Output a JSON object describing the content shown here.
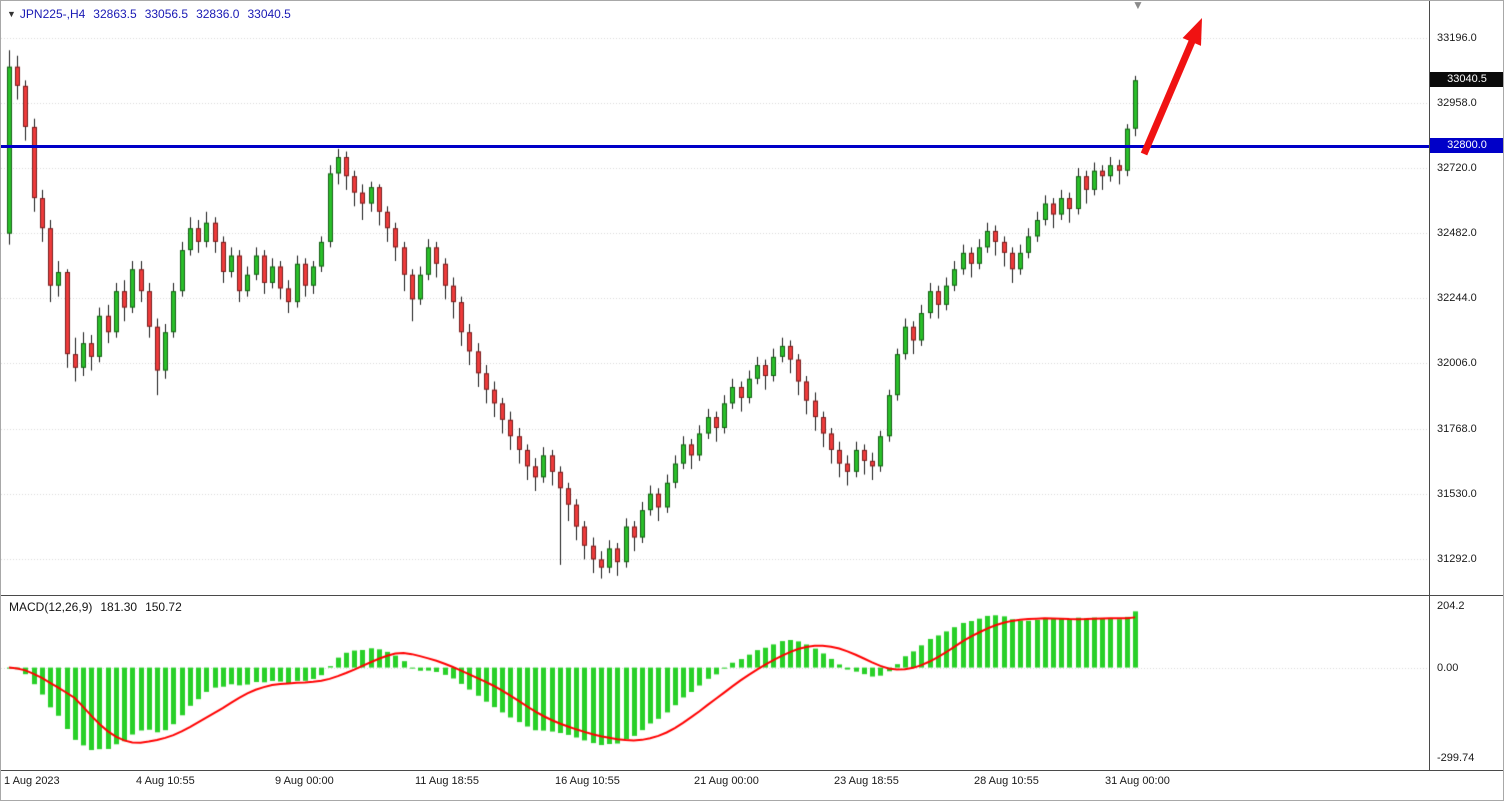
{
  "header": {
    "dropdown_icon": "▼",
    "symbol_timeframe": "JPN225-,H4",
    "open": "32863.5",
    "high": "33056.5",
    "low": "32836.0",
    "close": "33040.5"
  },
  "indicator_label": {
    "name": "MACD(12,26,9)",
    "main_value": "181.30",
    "signal_value": "150.72"
  },
  "price_tags": {
    "current": "33040.5",
    "hline": "32800.0"
  },
  "shift_marker_icon": "▼",
  "colors": {
    "up_candle": "#2abf2a",
    "down_candle": "#ee3b3b",
    "wick": "#1a1a1a",
    "grid": "#d8d8d8",
    "hline": "#0000c8",
    "current_tag_bg": "#0a0a0a",
    "hline_tag_bg": "#0000c8",
    "macd_bar": "#28d028",
    "macd_signal": "#ff0000",
    "arrow": "#f01212",
    "header_text": "#1919b4",
    "axis_text": "#1a1a1a"
  },
  "chart_data": {
    "type": "candlestick",
    "title": "JPN225-,H4",
    "symbol": "JPN225-",
    "timeframe": "H4",
    "last_ohlc": {
      "open": 32863.5,
      "high": 33056.5,
      "low": 32836.0,
      "close": 33040.5
    },
    "price_axis": {
      "tick_labels": [
        "33196.0",
        "32958.0",
        "32720.0",
        "32482.0",
        "32244.0",
        "32006.0",
        "31768.0",
        "31530.0",
        "31292.0"
      ],
      "tick_values": [
        33196.0,
        32958.0,
        32720.0,
        32482.0,
        32244.0,
        32006.0,
        31768.0,
        31530.0,
        31292.0
      ],
      "ylim": [
        31160,
        33330
      ]
    },
    "time_axis": {
      "ticks": [
        {
          "label": "1 Aug 2023",
          "index": 0
        },
        {
          "label": "4 Aug 10:55",
          "index": 16
        },
        {
          "label": "9 Aug 00:00",
          "index": 33
        },
        {
          "label": "11 Aug 18:55",
          "index": 50
        },
        {
          "label": "16 Aug 10:55",
          "index": 67
        },
        {
          "label": "21 Aug 00:00",
          "index": 84
        },
        {
          "label": "23 Aug 18:55",
          "index": 101
        },
        {
          "label": "28 Aug 10:55",
          "index": 118
        },
        {
          "label": "31 Aug 00:00",
          "index": 134
        }
      ]
    },
    "horizontal_line": {
      "price": 32800.0,
      "label": "32800.0"
    },
    "current_price": 33040.5,
    "candles": [
      [
        32480,
        33150,
        32440,
        33090
      ],
      [
        33090,
        33130,
        32970,
        33020
      ],
      [
        33020,
        33040,
        32820,
        32870
      ],
      [
        32870,
        32900,
        32560,
        32610
      ],
      [
        32610,
        32640,
        32450,
        32500
      ],
      [
        32500,
        32530,
        32230,
        32290
      ],
      [
        32290,
        32380,
        32250,
        32340
      ],
      [
        32340,
        32350,
        31990,
        32040
      ],
      [
        32040,
        32100,
        31940,
        31990
      ],
      [
        31990,
        32120,
        31960,
        32080
      ],
      [
        32080,
        32110,
        31980,
        32030
      ],
      [
        32030,
        32210,
        32010,
        32180
      ],
      [
        32180,
        32220,
        32080,
        32120
      ],
      [
        32120,
        32300,
        32100,
        32270
      ],
      [
        32270,
        32310,
        32160,
        32210
      ],
      [
        32210,
        32380,
        32190,
        32350
      ],
      [
        32350,
        32380,
        32230,
        32270
      ],
      [
        32270,
        32300,
        32100,
        32140
      ],
      [
        32140,
        32170,
        31890,
        31980
      ],
      [
        31980,
        32150,
        31950,
        32120
      ],
      [
        32120,
        32300,
        32100,
        32270
      ],
      [
        32270,
        32450,
        32250,
        32420
      ],
      [
        32420,
        32540,
        32400,
        32500
      ],
      [
        32500,
        32530,
        32410,
        32450
      ],
      [
        32450,
        32560,
        32430,
        32520
      ],
      [
        32520,
        32540,
        32410,
        32450
      ],
      [
        32450,
        32470,
        32300,
        32340
      ],
      [
        32340,
        32430,
        32320,
        32400
      ],
      [
        32400,
        32420,
        32230,
        32270
      ],
      [
        32270,
        32360,
        32250,
        32330
      ],
      [
        32330,
        32430,
        32310,
        32400
      ],
      [
        32400,
        32420,
        32260,
        32300
      ],
      [
        32300,
        32390,
        32280,
        32360
      ],
      [
        32360,
        32380,
        32240,
        32280
      ],
      [
        32280,
        32310,
        32190,
        32230
      ],
      [
        32230,
        32400,
        32210,
        32370
      ],
      [
        32370,
        32390,
        32250,
        32290
      ],
      [
        32290,
        32380,
        32260,
        32360
      ],
      [
        32360,
        32470,
        32340,
        32450
      ],
      [
        32450,
        32730,
        32430,
        32700
      ],
      [
        32700,
        32790,
        32660,
        32760
      ],
      [
        32760,
        32780,
        32640,
        32690
      ],
      [
        32690,
        32710,
        32580,
        32630
      ],
      [
        32630,
        32660,
        32530,
        32590
      ],
      [
        32590,
        32670,
        32560,
        32650
      ],
      [
        32650,
        32660,
        32510,
        32560
      ],
      [
        32560,
        32580,
        32450,
        32500
      ],
      [
        32500,
        32520,
        32380,
        32430
      ],
      [
        32430,
        32450,
        32270,
        32330
      ],
      [
        32330,
        32350,
        32160,
        32240
      ],
      [
        32240,
        32360,
        32220,
        32330
      ],
      [
        32330,
        32460,
        32310,
        32430
      ],
      [
        32430,
        32450,
        32320,
        32370
      ],
      [
        32370,
        32390,
        32240,
        32290
      ],
      [
        32290,
        32320,
        32170,
        32230
      ],
      [
        32230,
        32250,
        32070,
        32120
      ],
      [
        32120,
        32150,
        32000,
        32050
      ],
      [
        32050,
        32080,
        31920,
        31970
      ],
      [
        31970,
        32000,
        31860,
        31910
      ],
      [
        31910,
        31940,
        31810,
        31860
      ],
      [
        31860,
        31880,
        31750,
        31800
      ],
      [
        31800,
        31830,
        31690,
        31740
      ],
      [
        31740,
        31770,
        31640,
        31690
      ],
      [
        31690,
        31710,
        31580,
        31630
      ],
      [
        31630,
        31660,
        31540,
        31590
      ],
      [
        31590,
        31700,
        31570,
        31670
      ],
      [
        31670,
        31690,
        31560,
        31610
      ],
      [
        31610,
        31630,
        31270,
        31550
      ],
      [
        31550,
        31570,
        31430,
        31490
      ],
      [
        31490,
        31510,
        31360,
        31410
      ],
      [
        31410,
        31430,
        31290,
        31340
      ],
      [
        31340,
        31370,
        31240,
        31290
      ],
      [
        31290,
        31320,
        31220,
        31260
      ],
      [
        31260,
        31360,
        31240,
        31330
      ],
      [
        31330,
        31350,
        31230,
        31280
      ],
      [
        31280,
        31440,
        31260,
        31410
      ],
      [
        31410,
        31430,
        31320,
        31370
      ],
      [
        31370,
        31500,
        31350,
        31470
      ],
      [
        31470,
        31560,
        31450,
        31530
      ],
      [
        31530,
        31550,
        31430,
        31480
      ],
      [
        31480,
        31600,
        31460,
        31570
      ],
      [
        31570,
        31670,
        31550,
        31640
      ],
      [
        31640,
        31740,
        31620,
        31710
      ],
      [
        31710,
        31730,
        31620,
        31670
      ],
      [
        31670,
        31780,
        31650,
        31750
      ],
      [
        31750,
        31840,
        31730,
        31810
      ],
      [
        31810,
        31830,
        31720,
        31770
      ],
      [
        31770,
        31890,
        31750,
        31860
      ],
      [
        31860,
        31950,
        31840,
        31920
      ],
      [
        31920,
        31940,
        31830,
        31880
      ],
      [
        31880,
        31980,
        31860,
        31950
      ],
      [
        31950,
        32030,
        31930,
        32000
      ],
      [
        32000,
        32020,
        31910,
        31960
      ],
      [
        31960,
        32060,
        31940,
        32030
      ],
      [
        32030,
        32100,
        32010,
        32070
      ],
      [
        32070,
        32090,
        31970,
        32020
      ],
      [
        32020,
        32040,
        31890,
        31940
      ],
      [
        31940,
        31960,
        31820,
        31870
      ],
      [
        31870,
        31900,
        31760,
        31810
      ],
      [
        31810,
        31830,
        31700,
        31750
      ],
      [
        31750,
        31770,
        31640,
        31690
      ],
      [
        31690,
        31720,
        31590,
        31640
      ],
      [
        31640,
        31670,
        31560,
        31610
      ],
      [
        31610,
        31720,
        31590,
        31690
      ],
      [
        31690,
        31710,
        31600,
        31650
      ],
      [
        31650,
        31680,
        31580,
        31630
      ],
      [
        31630,
        31760,
        31610,
        31740
      ],
      [
        31740,
        31910,
        31720,
        31890
      ],
      [
        31890,
        32060,
        31870,
        32040
      ],
      [
        32040,
        32170,
        32020,
        32140
      ],
      [
        32140,
        32160,
        32040,
        32090
      ],
      [
        32090,
        32220,
        32070,
        32190
      ],
      [
        32190,
        32300,
        32170,
        32270
      ],
      [
        32270,
        32290,
        32170,
        32220
      ],
      [
        32220,
        32320,
        32200,
        32290
      ],
      [
        32290,
        32380,
        32270,
        32350
      ],
      [
        32350,
        32440,
        32330,
        32410
      ],
      [
        32410,
        32430,
        32320,
        32370
      ],
      [
        32370,
        32460,
        32350,
        32430
      ],
      [
        32430,
        32520,
        32410,
        32490
      ],
      [
        32490,
        32510,
        32400,
        32450
      ],
      [
        32450,
        32470,
        32360,
        32410
      ],
      [
        32410,
        32430,
        32300,
        32350
      ],
      [
        32350,
        32440,
        32330,
        32410
      ],
      [
        32410,
        32500,
        32390,
        32470
      ],
      [
        32470,
        32560,
        32450,
        32530
      ],
      [
        32530,
        32620,
        32510,
        32590
      ],
      [
        32590,
        32610,
        32500,
        32550
      ],
      [
        32550,
        32640,
        32530,
        32610
      ],
      [
        32610,
        32630,
        32520,
        32570
      ],
      [
        32570,
        32720,
        32550,
        32690
      ],
      [
        32690,
        32710,
        32590,
        32640
      ],
      [
        32640,
        32740,
        32620,
        32710
      ],
      [
        32710,
        32730,
        32640,
        32690
      ],
      [
        32690,
        32760,
        32670,
        32730
      ],
      [
        32730,
        32750,
        32660,
        32710
      ],
      [
        32710,
        32880,
        32690,
        32863.5
      ],
      [
        32863.5,
        33056.5,
        32836.0,
        33040.5
      ]
    ],
    "indicator": {
      "type": "MACD",
      "params": [
        12,
        26,
        9
      ],
      "label": "MACD(12,26,9)",
      "current_main": 181.3,
      "current_signal": 150.72,
      "axis_tick_labels": [
        "204.2",
        "0.00",
        "-299.74"
      ],
      "axis_tick_values": [
        204.2,
        0.0,
        -299.74
      ]
    },
    "annotations": [
      {
        "type": "arrow",
        "from": [
          1143,
          153
        ],
        "to": [
          1201,
          17
        ],
        "color": "#f01212"
      }
    ]
  }
}
